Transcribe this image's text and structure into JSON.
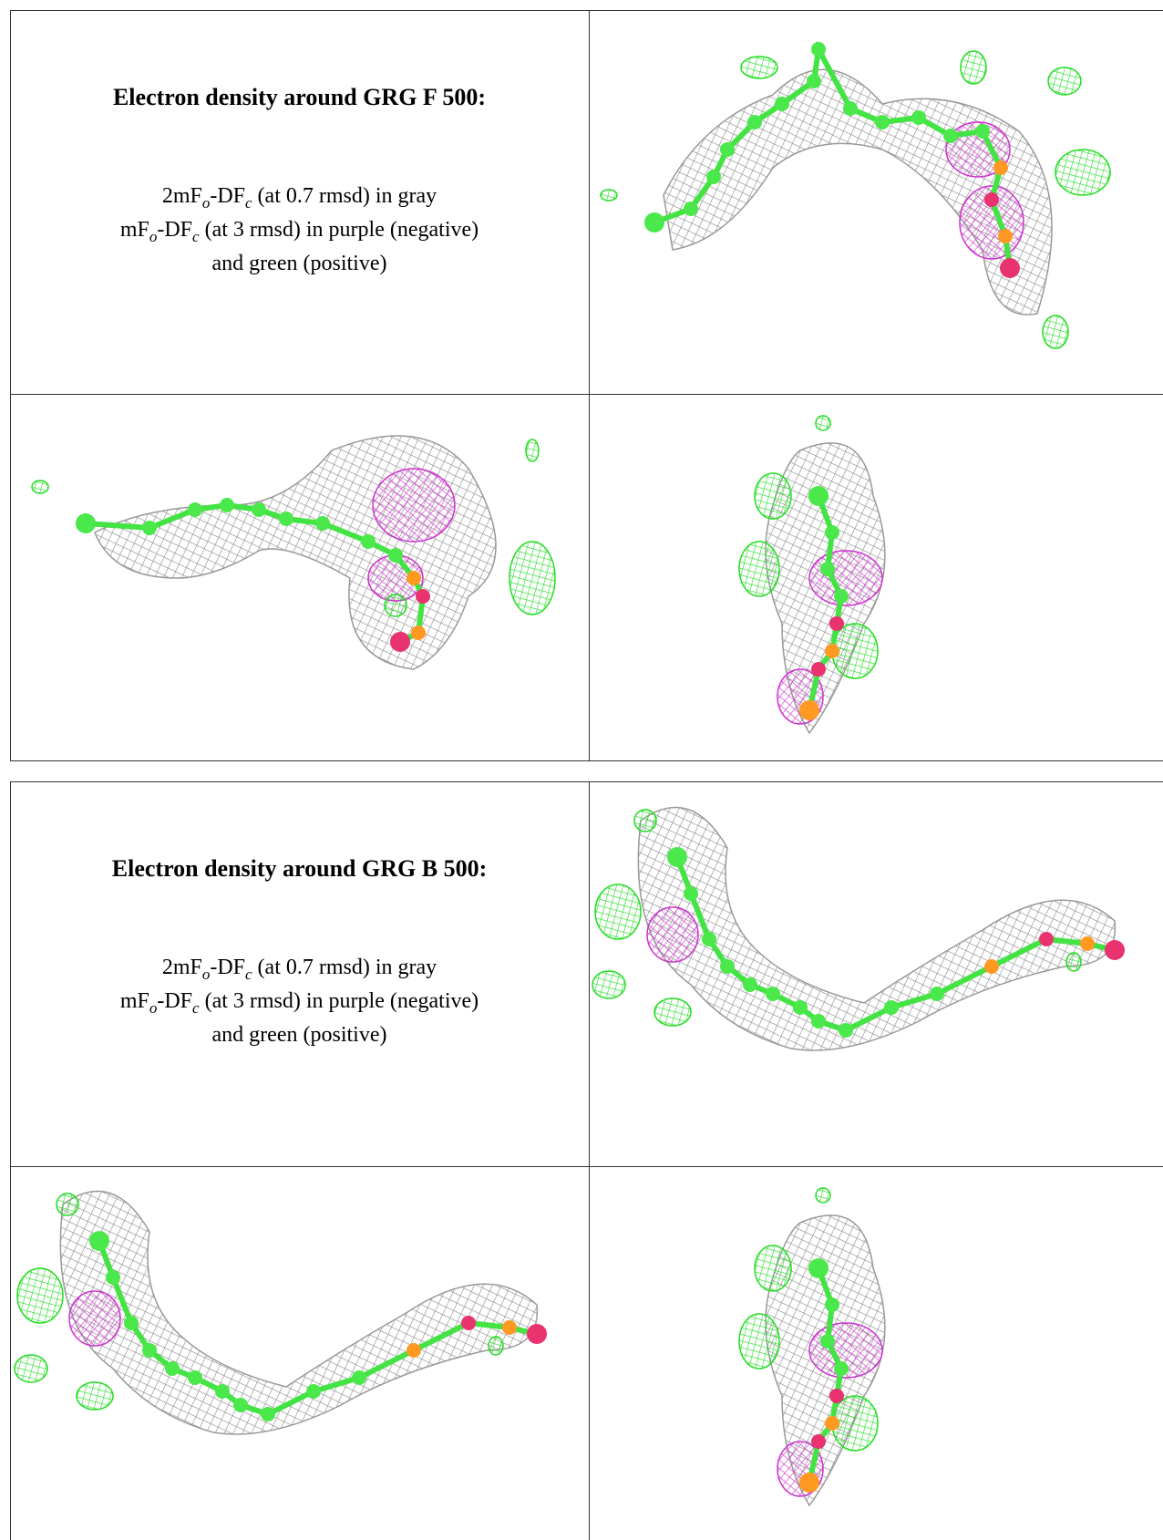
{
  "tables": [
    {
      "title": "Electron density around GRG F 500:",
      "lines": [
        [
          "2mF",
          "o",
          "-DF",
          "c",
          " (at 0.7 rmsd) in gray"
        ],
        [
          "mF",
          "o",
          "-DF",
          "c",
          " (at 3 rmsd) in purple (negative)"
        ],
        [
          "and green (positive)"
        ]
      ]
    },
    {
      "title": "Electron density around GRG B 500:",
      "lines": [
        [
          "2mF",
          "o",
          "-DF",
          "c",
          " (at 0.7 rmsd) in gray"
        ],
        [
          "mF",
          "o",
          "-DF",
          "c",
          " (at 3 rmsd) in purple (negative)"
        ],
        [
          "and green (positive)"
        ]
      ]
    }
  ]
}
